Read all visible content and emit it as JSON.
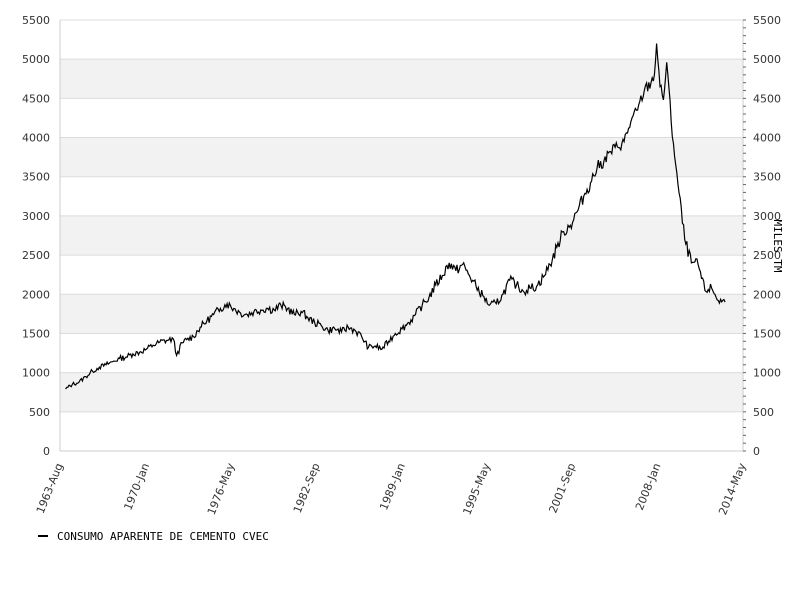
{
  "chart_data": {
    "type": "line",
    "title": "",
    "xlabel": "",
    "ylabel_right": "MILES TM",
    "ylim": [
      0,
      5500
    ],
    "y_ticks": [
      0,
      500,
      1000,
      1500,
      2000,
      2500,
      3000,
      3500,
      4000,
      4500,
      5000,
      5500
    ],
    "x_tick_labels": [
      "1963-Aug",
      "1970-Jan",
      "1976-May",
      "1982-Sep",
      "1989-Jan",
      "1995-May",
      "2001-Sep",
      "2008-Jan",
      "2014-May"
    ],
    "xlim": [
      "1963-08",
      "2014-05"
    ],
    "grid": "horizontal",
    "band_colors": [
      "#ffffff",
      "#f2f2f2"
    ],
    "line_color": "#000000",
    "legend_position": "bottom-left",
    "series": [
      {
        "name": "CONSUMO APARENTE DE CEMENTO CVEC",
        "points": [
          [
            "1964-01",
            790
          ],
          [
            "1964-07",
            850
          ],
          [
            "1965-01",
            880
          ],
          [
            "1965-07",
            950
          ],
          [
            "1966-01",
            1020
          ],
          [
            "1966-07",
            1070
          ],
          [
            "1967-01",
            1100
          ],
          [
            "1967-07",
            1140
          ],
          [
            "1968-01",
            1180
          ],
          [
            "1968-07",
            1200
          ],
          [
            "1969-01",
            1240
          ],
          [
            "1969-07",
            1260
          ],
          [
            "1970-01",
            1300
          ],
          [
            "1970-07",
            1350
          ],
          [
            "1971-01",
            1390
          ],
          [
            "1971-07",
            1410
          ],
          [
            "1972-01",
            1430
          ],
          [
            "1972-04",
            1220
          ],
          [
            "1972-09",
            1380
          ],
          [
            "1973-01",
            1420
          ],
          [
            "1973-07",
            1460
          ],
          [
            "1974-01",
            1580
          ],
          [
            "1974-07",
            1660
          ],
          [
            "1975-01",
            1740
          ],
          [
            "1975-07",
            1820
          ],
          [
            "1976-01",
            1880
          ],
          [
            "1976-07",
            1820
          ],
          [
            "1977-01",
            1760
          ],
          [
            "1977-07",
            1740
          ],
          [
            "1978-01",
            1780
          ],
          [
            "1978-07",
            1800
          ],
          [
            "1979-01",
            1820
          ],
          [
            "1979-07",
            1800
          ],
          [
            "1980-01",
            1860
          ],
          [
            "1980-07",
            1820
          ],
          [
            "1981-01",
            1740
          ],
          [
            "1981-07",
            1780
          ],
          [
            "1982-01",
            1700
          ],
          [
            "1982-07",
            1640
          ],
          [
            "1983-01",
            1600
          ],
          [
            "1983-07",
            1540
          ],
          [
            "1984-01",
            1560
          ],
          [
            "1984-07",
            1520
          ],
          [
            "1985-01",
            1580
          ],
          [
            "1985-07",
            1540
          ],
          [
            "1986-01",
            1460
          ],
          [
            "1986-07",
            1320
          ],
          [
            "1987-01",
            1340
          ],
          [
            "1987-07",
            1300
          ],
          [
            "1988-01",
            1400
          ],
          [
            "1988-07",
            1500
          ],
          [
            "1989-01",
            1560
          ],
          [
            "1989-07",
            1640
          ],
          [
            "1990-01",
            1740
          ],
          [
            "1990-07",
            1860
          ],
          [
            "1991-01",
            1960
          ],
          [
            "1991-07",
            2120
          ],
          [
            "1992-01",
            2240
          ],
          [
            "1992-07",
            2400
          ],
          [
            "1993-01",
            2300
          ],
          [
            "1993-07",
            2380
          ],
          [
            "1994-01",
            2240
          ],
          [
            "1994-07",
            2100
          ],
          [
            "1995-01",
            1980
          ],
          [
            "1995-07",
            1860
          ],
          [
            "1996-01",
            1880
          ],
          [
            "1996-07",
            2000
          ],
          [
            "1997-01",
            2180
          ],
          [
            "1997-07",
            2120
          ],
          [
            "1998-01",
            2040
          ],
          [
            "1998-07",
            2080
          ],
          [
            "1999-01",
            2100
          ],
          [
            "1999-07",
            2220
          ],
          [
            "2000-01",
            2380
          ],
          [
            "2000-07",
            2600
          ],
          [
            "2001-01",
            2800
          ],
          [
            "2001-07",
            2880
          ],
          [
            "2002-01",
            3050
          ],
          [
            "2002-07",
            3250
          ],
          [
            "2003-01",
            3420
          ],
          [
            "2003-07",
            3620
          ],
          [
            "2004-01",
            3700
          ],
          [
            "2004-07",
            3820
          ],
          [
            "2005-01",
            3880
          ],
          [
            "2005-07",
            3950
          ],
          [
            "2006-01",
            4200
          ],
          [
            "2006-07",
            4350
          ],
          [
            "2007-01",
            4600
          ],
          [
            "2007-07",
            4700
          ],
          [
            "2007-10",
            4800
          ],
          [
            "2007-12",
            5200
          ],
          [
            "2008-03",
            4650
          ],
          [
            "2008-06",
            4480
          ],
          [
            "2008-09",
            4960
          ],
          [
            "2009-01",
            4200
          ],
          [
            "2009-07",
            3400
          ],
          [
            "2010-01",
            2700
          ],
          [
            "2010-07",
            2400
          ],
          [
            "2011-01",
            2380
          ],
          [
            "2011-07",
            2050
          ],
          [
            "2012-01",
            2080
          ],
          [
            "2012-07",
            1920
          ],
          [
            "2013-01",
            1900
          ]
        ]
      }
    ]
  }
}
